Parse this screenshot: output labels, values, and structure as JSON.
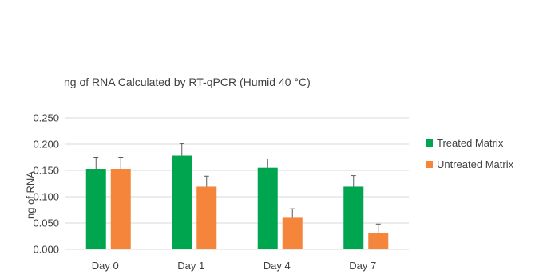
{
  "chart_data": {
    "type": "bar",
    "title": "ng of RNA Calculated by RT-qPCR (Humid 40 °C)",
    "xlabel": "",
    "ylabel": "ng of RNA",
    "categories": [
      "Day 0",
      "Day 1",
      "Day 4",
      "Day 7"
    ],
    "series": [
      {
        "name": "Treated Matrix",
        "values": [
          0.153,
          0.178,
          0.155,
          0.119
        ],
        "errors": [
          0.022,
          0.023,
          0.017,
          0.021
        ],
        "color": "#00a54f"
      },
      {
        "name": "Untreated Matrix",
        "values": [
          0.153,
          0.119,
          0.06,
          0.031
        ],
        "errors": [
          0.022,
          0.02,
          0.017,
          0.017
        ],
        "color": "#f4853b"
      }
    ],
    "ylim": [
      0,
      0.25
    ],
    "yticks": [
      0,
      0.05,
      0.1,
      0.15,
      0.2,
      0.25
    ],
    "ytick_labels": [
      "0.000",
      "0.050",
      "0.100",
      "0.150",
      "0.200",
      "0.250"
    ],
    "grid": true,
    "legend": "right",
    "gridline_color": "#d9d9d9",
    "errorbar_color": "#595959"
  }
}
